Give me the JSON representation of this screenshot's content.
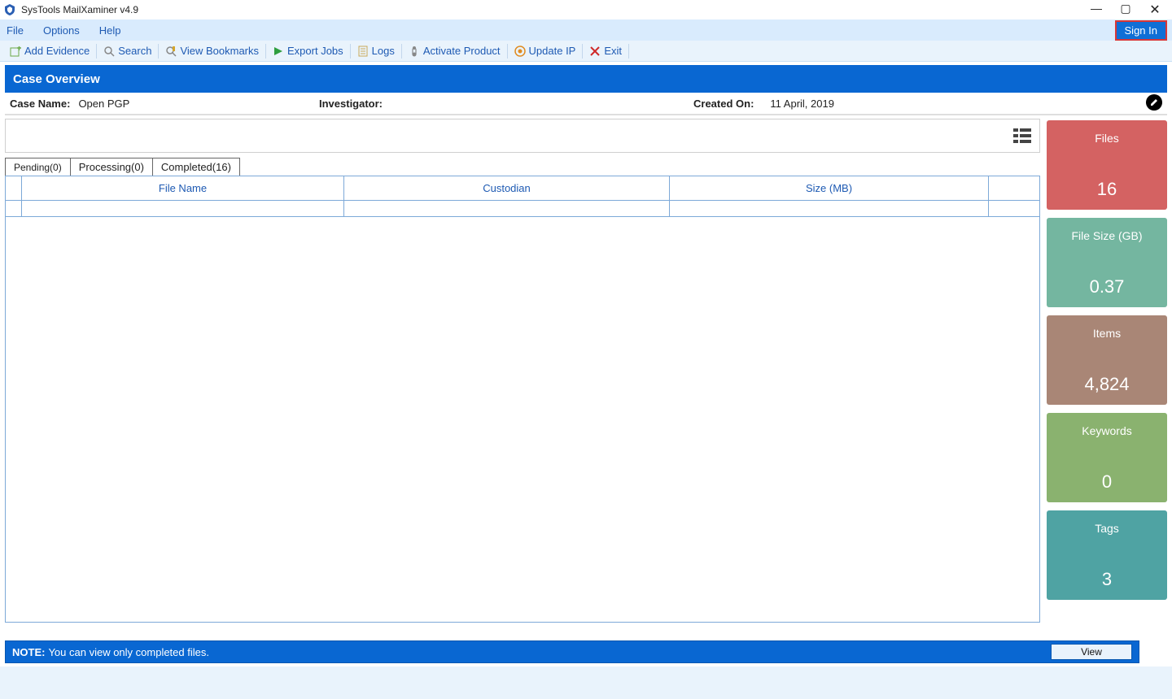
{
  "app": {
    "title": "SysTools MailXaminer v4.9"
  },
  "menu": {
    "file": "File",
    "options": "Options",
    "help": "Help",
    "signin": "Sign In"
  },
  "toolbar": {
    "add_evidence": "Add Evidence",
    "search": "Search",
    "view_bookmarks": "View Bookmarks",
    "export_jobs": "Export Jobs",
    "logs": "Logs",
    "activate": "Activate Product",
    "update_ip": "Update IP",
    "exit": "Exit"
  },
  "overview": {
    "header": "Case Overview"
  },
  "case": {
    "name_label": "Case Name:",
    "name_value": "Open PGP",
    "investigator_label": "Investigator:",
    "investigator_value": "",
    "created_label": "Created On:",
    "created_value": "11 April, 2019"
  },
  "tabs": {
    "pending": "Pending(0)",
    "processing": "Processing(0)",
    "completed": "Completed(16)"
  },
  "table": {
    "columns": [
      "File Name",
      "Custodian",
      "Size (MB)"
    ],
    "rows": []
  },
  "cards": [
    {
      "title": "Files",
      "value": "16",
      "bg": "#d46262"
    },
    {
      "title": "File Size (GB)",
      "value": "0.37",
      "bg": "#74b6a0"
    },
    {
      "title": "Items",
      "value": "4,824",
      "bg": "#a98676"
    },
    {
      "title": "Keywords",
      "value": "0",
      "bg": "#8ab26f"
    },
    {
      "title": "Tags",
      "value": "3",
      "bg": "#4fa3a3"
    }
  ],
  "note": {
    "label": "NOTE:",
    "text": "You can view only completed files.",
    "view_btn": "View"
  },
  "colors": {
    "blue_hdr": "#0967d2",
    "menubar_bg": "#d9ebfd",
    "toolbar_bg": "#e9f3fc",
    "link": "#1e5ab3",
    "signin_border": "#d83737"
  }
}
